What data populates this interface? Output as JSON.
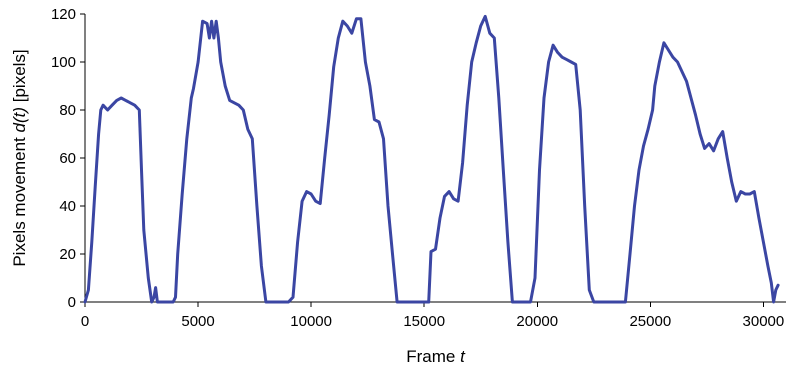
{
  "chart_data": {
    "type": "line",
    "xlabel": "Frame",
    "xlabel_var": "t",
    "ylabel_prefix": "Pixels movement ",
    "ylabel_var": "d(t)",
    "ylabel_suffix": " [pixels]",
    "xlim": [
      0,
      31000
    ],
    "ylim": [
      0,
      120
    ],
    "xticks": [
      0,
      5000,
      10000,
      15000,
      20000,
      25000,
      30000
    ],
    "yticks": [
      0,
      20,
      40,
      60,
      80,
      100,
      120
    ],
    "grid": false,
    "legend": "none",
    "line_color": "#3b46a3",
    "series": [
      {
        "x": [
          0,
          150,
          300,
          450,
          600,
          700,
          800,
          1000,
          1200,
          1400,
          1600,
          1800,
          2000,
          2200,
          2400,
          2500,
          2600,
          2800,
          2950,
          3050,
          3120,
          3200,
          3250,
          3300,
          3500,
          3700,
          3900,
          4000,
          4100,
          4300,
          4500,
          4700,
          4800,
          5000,
          5200,
          5400,
          5500,
          5600,
          5700,
          5800,
          5900,
          6000,
          6200,
          6400,
          6600,
          6800,
          7000,
          7200,
          7400,
          7600,
          7800,
          8000,
          8200,
          8400,
          8600,
          8800,
          9000,
          9200,
          9400,
          9600,
          9800,
          10000,
          10200,
          10400,
          10600,
          10800,
          11000,
          11200,
          11400,
          11600,
          11800,
          12000,
          12200,
          12400,
          12600,
          12800,
          13000,
          13200,
          13400,
          13600,
          13800,
          14000,
          14200,
          14400,
          14600,
          14800,
          15000,
          15200,
          15300,
          15500,
          15700,
          15900,
          16100,
          16300,
          16500,
          16700,
          16900,
          17100,
          17300,
          17500,
          17700,
          17900,
          18100,
          18300,
          18500,
          18700,
          18900,
          19100,
          19300,
          19500,
          19700,
          19900,
          20100,
          20300,
          20500,
          20700,
          20900,
          21100,
          21300,
          21500,
          21700,
          21900,
          22100,
          22300,
          22500,
          22700,
          22900,
          23100,
          23300,
          23500,
          23700,
          23900,
          24100,
          24300,
          24500,
          24700,
          24900,
          25100,
          25200,
          25400,
          25600,
          25800,
          26000,
          26200,
          26400,
          26600,
          26800,
          27000,
          27200,
          27400,
          27600,
          27800,
          28000,
          28200,
          28400,
          28600,
          28800,
          29000,
          29200,
          29400,
          29600,
          29800,
          30000,
          30200,
          30350,
          30450,
          30550,
          30650
        ],
        "y": [
          0,
          5,
          25,
          48,
          70,
          80,
          82,
          80,
          82,
          84,
          85,
          84,
          83,
          82,
          80,
          55,
          30,
          10,
          0,
          2,
          6,
          0,
          0,
          0,
          0,
          0,
          0,
          2,
          20,
          45,
          68,
          85,
          89,
          100,
          117,
          116,
          110,
          117,
          110,
          117,
          110,
          100,
          90,
          84,
          83,
          82,
          80,
          72,
          68,
          40,
          15,
          0,
          0,
          0,
          0,
          0,
          0,
          2,
          25,
          42,
          46,
          45,
          42,
          41,
          60,
          78,
          98,
          110,
          117,
          115,
          112,
          118,
          118,
          100,
          90,
          76,
          75,
          68,
          40,
          20,
          0,
          0,
          0,
          0,
          0,
          0,
          0,
          0,
          21,
          22,
          35,
          44,
          46,
          43,
          42,
          58,
          82,
          100,
          108,
          115,
          119,
          112,
          110,
          85,
          55,
          25,
          0,
          0,
          0,
          0,
          0,
          10,
          55,
          85,
          100,
          107,
          104,
          102,
          101,
          100,
          99,
          80,
          40,
          5,
          0,
          0,
          0,
          0,
          0,
          0,
          0,
          0,
          20,
          40,
          55,
          65,
          72,
          80,
          90,
          100,
          108,
          105,
          102,
          100,
          96,
          92,
          85,
          78,
          70,
          64,
          66,
          63,
          68,
          71,
          60,
          50,
          42,
          46,
          45,
          45,
          46,
          35,
          25,
          15,
          8,
          0,
          5,
          7
        ]
      }
    ]
  }
}
